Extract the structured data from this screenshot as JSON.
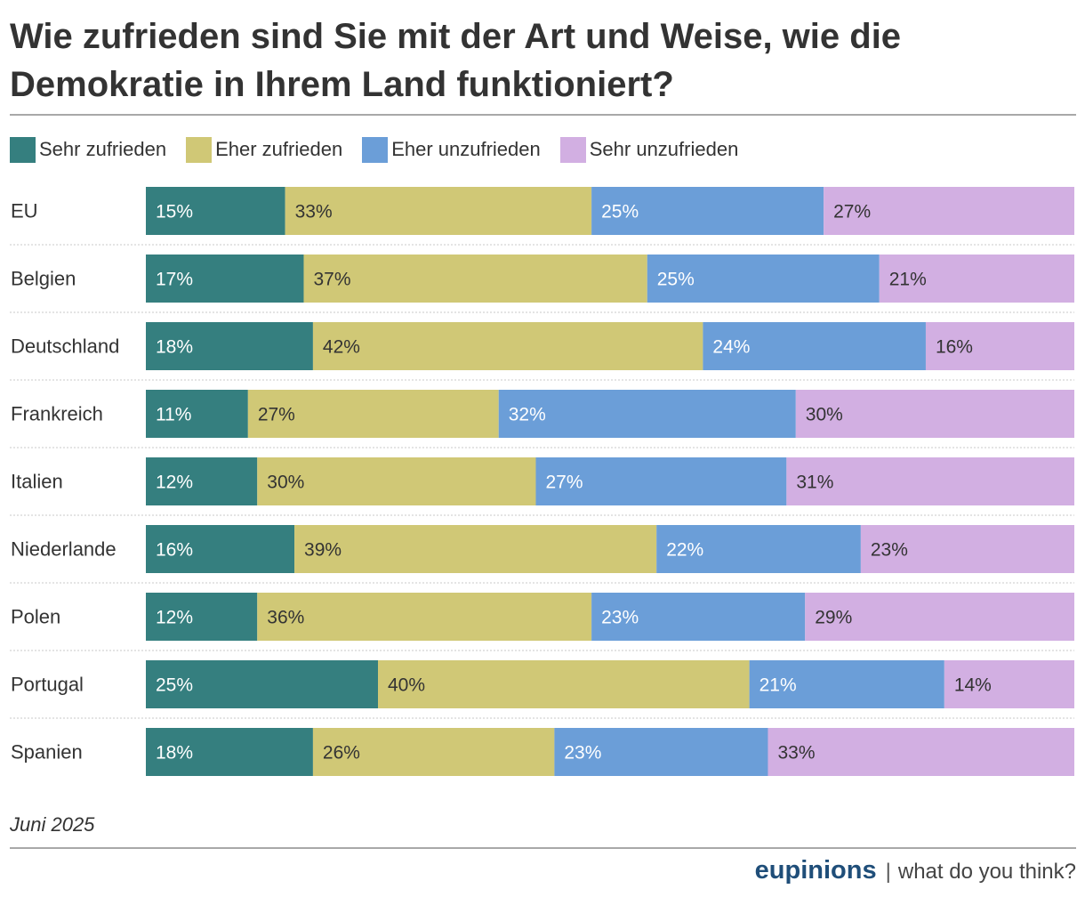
{
  "title": "Wie zufrieden sind Sie mit der Art und Weise, wie die Demokratie in Ihrem Land funktioniert?",
  "footnote": "Juni 2025",
  "brand": {
    "name": "eupinions",
    "separator": "|",
    "tagline": "what do you think?"
  },
  "colors": {
    "sehr_zufrieden": "#357f7f",
    "eher_zufrieden": "#d0c876",
    "eher_unzufrieden": "#6b9ed8",
    "sehr_unzufrieden": "#d2afe2"
  },
  "legend": [
    {
      "label": "Sehr zufrieden",
      "color": "#357f7f"
    },
    {
      "label": "Eher zufrieden",
      "color": "#d0c876"
    },
    {
      "label": "Eher unzufrieden",
      "color": "#6b9ed8"
    },
    {
      "label": "Sehr unzufrieden",
      "color": "#d2afe2"
    }
  ],
  "chart_data": {
    "type": "bar",
    "orientation": "horizontal",
    "stacked": true,
    "unit": "%",
    "categories": [
      "EU",
      "Belgien",
      "Deutschland",
      "Frankreich",
      "Italien",
      "Niederlande",
      "Polen",
      "Portugal",
      "Spanien"
    ],
    "series": [
      {
        "name": "Sehr zufrieden",
        "color": "#357f7f",
        "label_color": "#ffffff",
        "values": [
          15,
          17,
          18,
          11,
          12,
          16,
          12,
          25,
          18
        ]
      },
      {
        "name": "Eher zufrieden",
        "color": "#d0c876",
        "label_color": "#333333",
        "values": [
          33,
          37,
          42,
          27,
          30,
          39,
          36,
          40,
          26
        ]
      },
      {
        "name": "Eher unzufrieden",
        "color": "#6b9ed8",
        "label_color": "#ffffff",
        "values": [
          25,
          25,
          24,
          32,
          27,
          22,
          23,
          21,
          23
        ]
      },
      {
        "name": "Sehr unzufrieden",
        "color": "#d2afe2",
        "label_color": "#333333",
        "values": [
          27,
          21,
          16,
          30,
          31,
          23,
          29,
          14,
          33
        ]
      }
    ],
    "legend_position": "top-left",
    "grid": false
  }
}
